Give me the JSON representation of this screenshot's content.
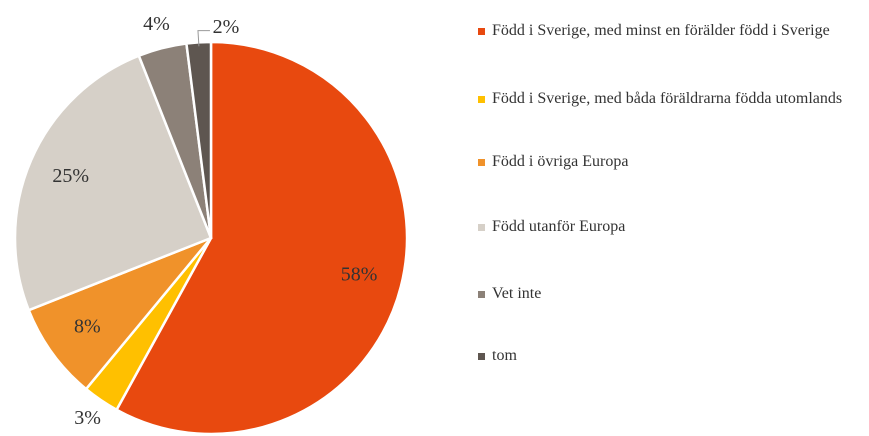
{
  "chart_data": {
    "type": "pie",
    "categories": [
      "Född i Sverige, med minst en förälder född i Sverige",
      "Född i Sverige, med båda föräldrarna födda utomlands",
      "Född i övriga Europa",
      "Född utanför Europa",
      "Vet inte",
      "tom"
    ],
    "values": [
      58,
      3,
      8,
      25,
      4,
      2
    ],
    "value_labels": [
      "58%",
      "3%",
      "8%",
      "25%",
      "4%",
      "2%"
    ],
    "colors": [
      "#e8490f",
      "#ffc000",
      "#f0922a",
      "#d6d0c8",
      "#8c8178",
      "#5e5650"
    ],
    "legend": "right"
  }
}
